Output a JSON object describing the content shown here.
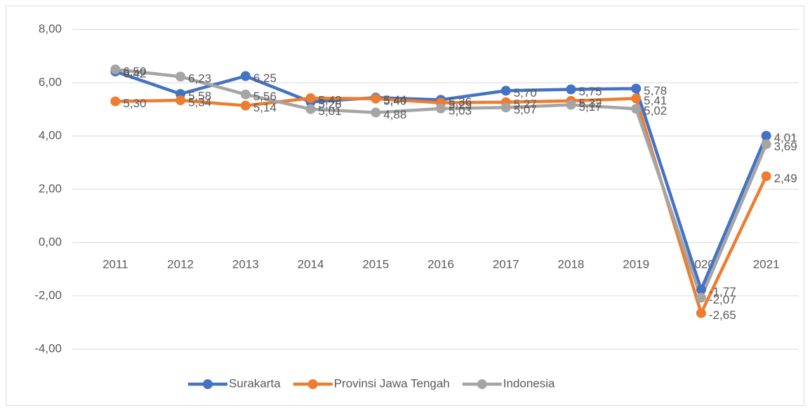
{
  "chart_data": {
    "type": "line",
    "categories": [
      "2011",
      "2012",
      "2013",
      "2014",
      "2015",
      "2016",
      "2017",
      "2018",
      "2019",
      "2020",
      "2021"
    ],
    "series": [
      {
        "name": "Surakarta",
        "color": "#4472c4",
        "values": [
          6.42,
          5.58,
          6.25,
          5.28,
          5.44,
          5.36,
          5.7,
          5.75,
          5.78,
          -1.77,
          4.01
        ],
        "value_labels": [
          "6,42",
          "5,58",
          "6,25",
          "5,28",
          "5,44",
          "5,36",
          "5,70",
          "5,75",
          "5,78",
          "-1,77",
          "4,01"
        ]
      },
      {
        "name": "Provinsi Jawa Tengah",
        "color": "#ed7d31",
        "values": [
          5.3,
          5.34,
          5.14,
          5.42,
          5.4,
          5.25,
          5.27,
          5.32,
          5.41,
          -2.65,
          2.49
        ],
        "value_labels": [
          "5,30",
          "5,34",
          "5,14",
          "5,42",
          "5,40",
          "5,25",
          "5,27",
          "5,32",
          "5,41",
          "-2,65",
          "2,49"
        ]
      },
      {
        "name": "Indonesia",
        "color": "#a5a5a5",
        "values": [
          6.5,
          6.23,
          5.56,
          5.01,
          4.88,
          5.03,
          5.07,
          5.17,
          5.02,
          -2.07,
          3.69
        ],
        "value_labels": [
          "6,50",
          "6,23",
          "5,56",
          "5,01",
          "4,88",
          "5,03",
          "5,07",
          "5,17",
          "5,02",
          "-2,07",
          "3,69"
        ]
      }
    ],
    "ylim": [
      -4,
      8
    ],
    "yticks": [
      {
        "value": -4,
        "label": "-4,00"
      },
      {
        "value": -2,
        "label": "-2,00"
      },
      {
        "value": 0,
        "label": "0,00"
      },
      {
        "value": 2,
        "label": "2,00"
      },
      {
        "value": 4,
        "label": "4,00"
      },
      {
        "value": 6,
        "label": "6,00"
      },
      {
        "value": 8,
        "label": "8,00"
      }
    ],
    "grid": true,
    "legend": "bottom"
  }
}
